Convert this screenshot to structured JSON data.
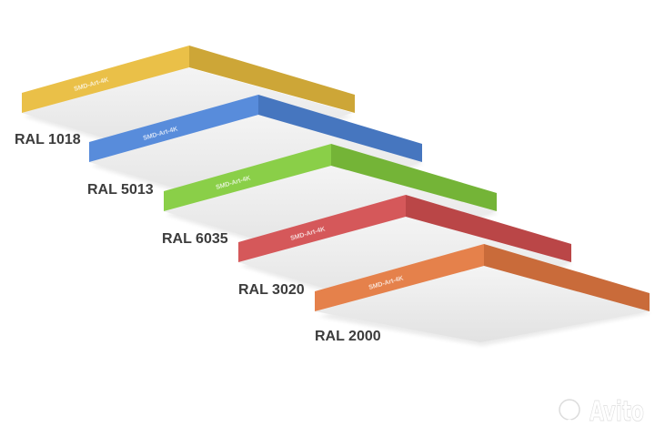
{
  "panels": [
    {
      "label": "RAL 1018",
      "mark": "SMD-Art-4K",
      "color": "#e9bd3e"
    },
    {
      "label": "RAL 5013",
      "mark": "SMD-Art-4K",
      "color": "#4f86d9"
    },
    {
      "label": "RAL 6035",
      "mark": "SMD-Art-4K",
      "color": "#84cc3e"
    },
    {
      "label": "RAL 3020",
      "mark": "SMD-Art-4K",
      "color": "#d34f51"
    },
    {
      "label": "RAL 2000",
      "mark": "SMD-Art-4K",
      "color": "#e47a42"
    }
  ],
  "watermark": {
    "text": "Avito",
    "icon": "avito-dots-icon"
  }
}
